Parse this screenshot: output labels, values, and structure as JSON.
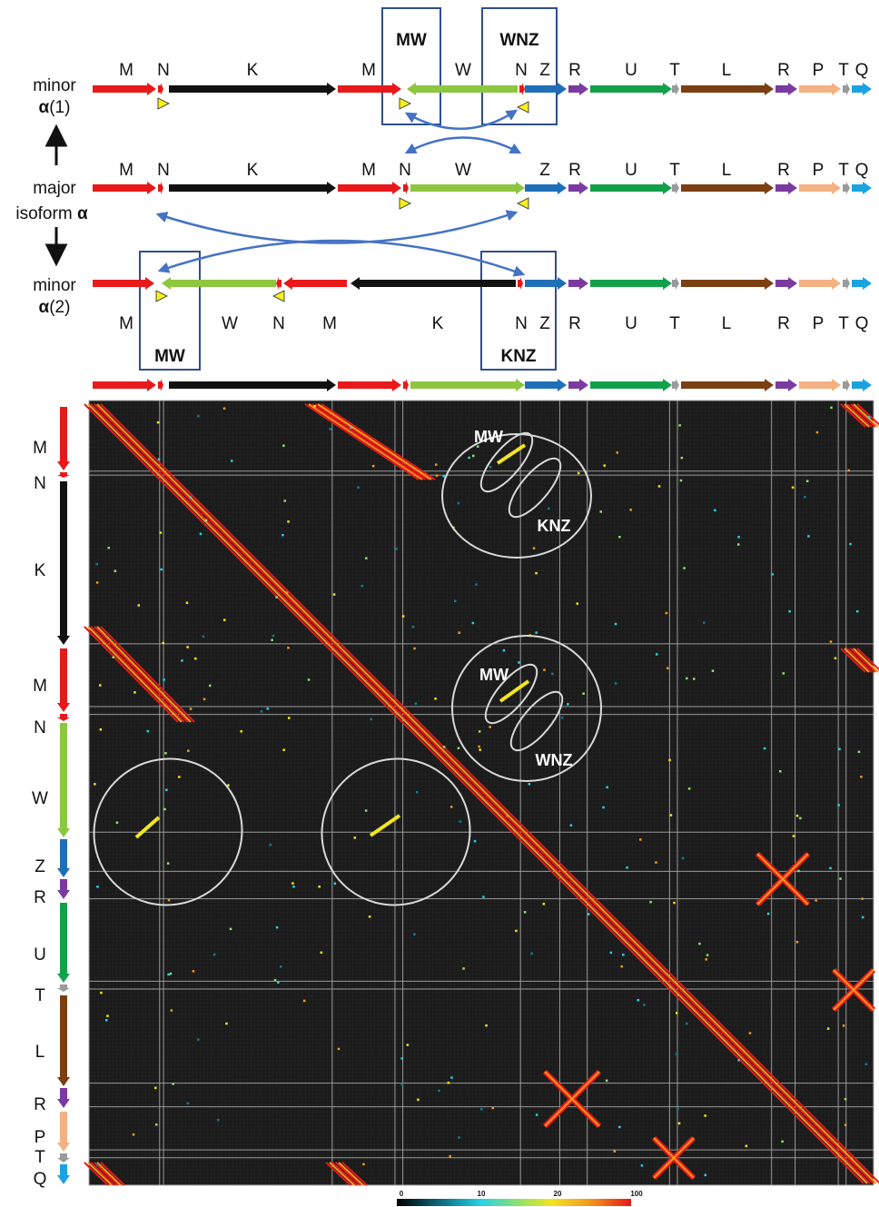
{
  "rows": [
    {
      "label_line1": "minor",
      "label_line2_pre": "",
      "label_line2_bold": "α",
      "label_line2_post": "(1)"
    },
    {
      "label_line1": "major",
      "label_line2_pre": "isoform ",
      "label_line2_bold": "α",
      "label_line2_post": ""
    },
    {
      "label_line1": "minor",
      "label_line2_pre": "",
      "label_line2_bold": "α",
      "label_line2_post": "(2)"
    }
  ],
  "boxes": [
    "MW",
    "WNZ",
    "MW",
    "KNZ"
  ],
  "row1_genes": [
    "M",
    "N",
    "K",
    "M",
    "W",
    "N",
    "Z",
    "R",
    "U",
    "T",
    "L",
    "R",
    "P",
    "T",
    "Q"
  ],
  "row2_genes": [
    "M",
    "N",
    "K",
    "M",
    "N",
    "W",
    "Z",
    "R",
    "U",
    "T",
    "L",
    "R",
    "P",
    "T",
    "Q"
  ],
  "row3_genes": [
    "M",
    "W",
    "N",
    "M",
    "K",
    "N",
    "Z",
    "R",
    "U",
    "T",
    "L",
    "R",
    "P",
    "T",
    "Q"
  ],
  "side_genes": [
    "M",
    "N",
    "K",
    "M",
    "N",
    "W",
    "Z",
    "R",
    "U",
    "T",
    "L",
    "R",
    "P",
    "T",
    "Q"
  ],
  "circle_labels": [
    "MW",
    "KNZ",
    "MW",
    "WNZ"
  ],
  "colors": {
    "M": "#e8191a",
    "N": "#e8191a",
    "K": "#111111",
    "W": "#8dc63f",
    "Z": "#1f6fb8",
    "R": "#7b3aa0",
    "U": "#13a04a",
    "T": "#9a9a9a",
    "L": "#7b3f12",
    "P": "#f4b183",
    "Q": "#1ba3e0",
    "connector": "#4472c4",
    "box": "#2f4f8a",
    "marker": "#f7ef1e"
  },
  "colorbar": {
    "ticks": [
      "0",
      "10",
      "20",
      "100"
    ]
  }
}
